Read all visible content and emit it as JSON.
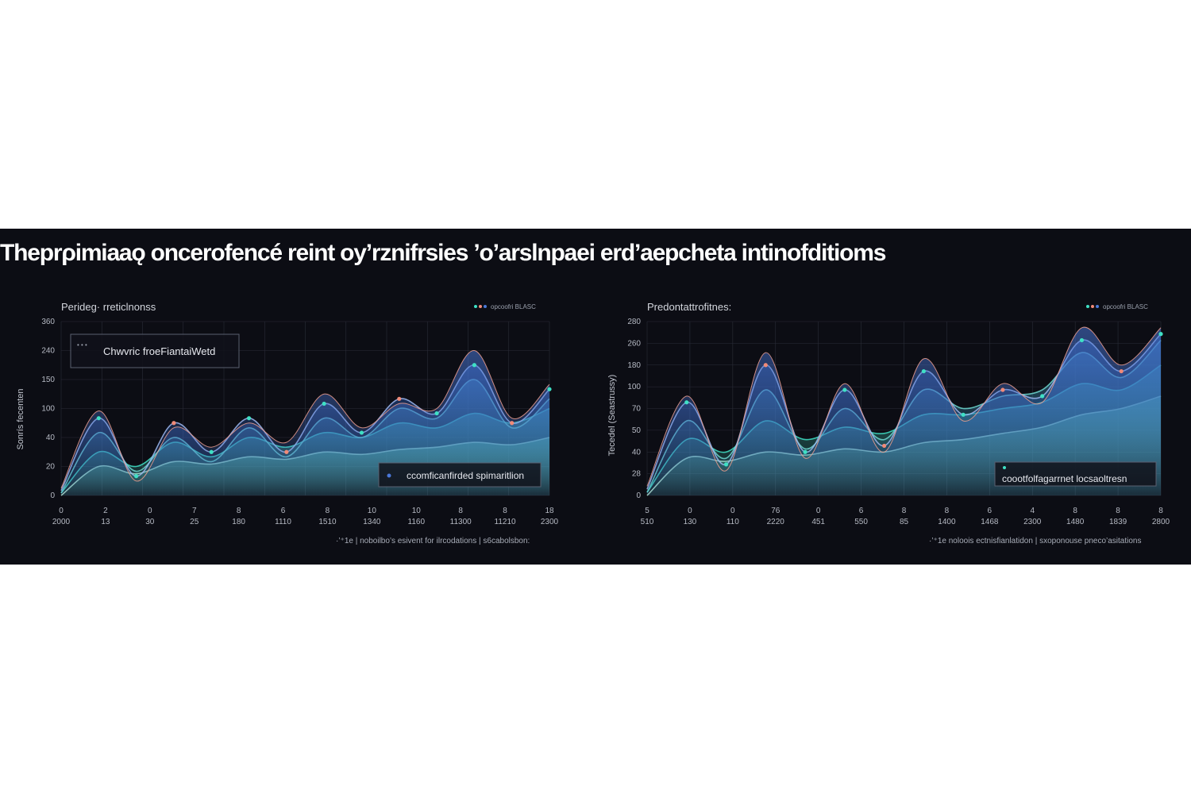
{
  "headline": "Theprρimiaaǫ oncerofencé reint oy’rznifrsies ’o’arslnpaei erd’aepcheta intinofditioms",
  "colors": {
    "background": "#0c0d14",
    "teal": "#3fe0c5",
    "mint": "#7ef0b0",
    "blue": "#4a78d8",
    "coral": "#f08a78"
  },
  "chart_data": [
    {
      "type": "area",
      "title": "Peridеg· rreticlnonss",
      "ylabel": "Sonrís fecenten",
      "legend": "opcoofri BLASC",
      "legend_position": "top-right",
      "annotation_top": "Chwvric froeFiantaiWetd",
      "annotation_bottom": "ccomficanfirded spimaritlion",
      "footer": "·’⁺1e | noboilbo’s esivent for ilrcodations | s6cabolsbon:",
      "grid": true,
      "ylim": [
        0,
        360
      ],
      "y_ticks": [
        "0",
        "20",
        "40",
        "100",
        "150",
        "240",
        "360"
      ],
      "x_ticks_top": [
        "0",
        "2",
        "0",
        "7",
        "8",
        "6",
        "8",
        "10",
        "10",
        "8",
        "8",
        "18"
      ],
      "x_ticks_bottom": [
        "2000",
        "13",
        "30",
        "25",
        "180",
        "1110",
        "1510",
        "1340",
        "1160",
        "11300",
        "11210",
        "2300"
      ],
      "series": [
        {
          "values": [
            10,
            160,
            40,
            150,
            90,
            160,
            90,
            190,
            130,
            200,
            170,
            270,
            150,
            220
          ]
        },
        {
          "values": [
            5,
            130,
            50,
            120,
            70,
            140,
            80,
            160,
            120,
            180,
            160,
            240,
            140,
            200
          ]
        },
        {
          "values": [
            5,
            90,
            60,
            110,
            80,
            120,
            100,
            130,
            120,
            150,
            140,
            170,
            150,
            180
          ]
        },
        {
          "values": [
            0,
            60,
            45,
            70,
            65,
            80,
            75,
            90,
            85,
            95,
            100,
            110,
            105,
            120
          ]
        },
        {
          "values": [
            15,
            175,
            30,
            140,
            100,
            150,
            110,
            210,
            140,
            190,
            180,
            300,
            160,
            230
          ]
        }
      ]
    },
    {
      "type": "area",
      "title": "Predontattrofitnes:",
      "ylabel": "Tecedel (Seastrussy)",
      "legend": "opcoofri BLASC",
      "legend_position": "top-right",
      "annotation_bottom": "coootfolfagarrnet locsaoltresn",
      "footer": "·’⁺1e noloois ectnisfianlatidon | sxoponouse pneco’asitations",
      "grid": true,
      "ylim": [
        0,
        280
      ],
      "y_ticks": [
        "0",
        "28",
        "40",
        "50",
        "70",
        "100",
        "180",
        "260",
        "280"
      ],
      "x_ticks_top": [
        "5",
        "0",
        "0",
        "76",
        "0",
        "6",
        "8",
        "8",
        "6",
        "4",
        "8",
        "8",
        "8"
      ],
      "x_ticks_bottom": [
        "510",
        "130",
        "110",
        "2220",
        "451",
        "550",
        "85",
        "1400",
        "1468",
        "2300",
        "1480",
        "1839",
        "2800"
      ],
      "series": [
        {
          "values": [
            10,
            150,
            50,
            210,
            70,
            170,
            80,
            200,
            130,
            170,
            160,
            250,
            200,
            260
          ]
        },
        {
          "values": [
            5,
            120,
            60,
            170,
            75,
            140,
            90,
            170,
            140,
            160,
            170,
            230,
            190,
            250
          ]
        },
        {
          "values": [
            5,
            90,
            70,
            120,
            90,
            110,
            100,
            130,
            130,
            140,
            150,
            180,
            170,
            210
          ]
        },
        {
          "values": [
            0,
            60,
            55,
            70,
            65,
            75,
            70,
            85,
            90,
            100,
            110,
            130,
            140,
            160
          ]
        },
        {
          "values": [
            15,
            160,
            40,
            230,
            60,
            180,
            70,
            220,
            120,
            180,
            150,
            270,
            210,
            270
          ]
        }
      ]
    }
  ]
}
